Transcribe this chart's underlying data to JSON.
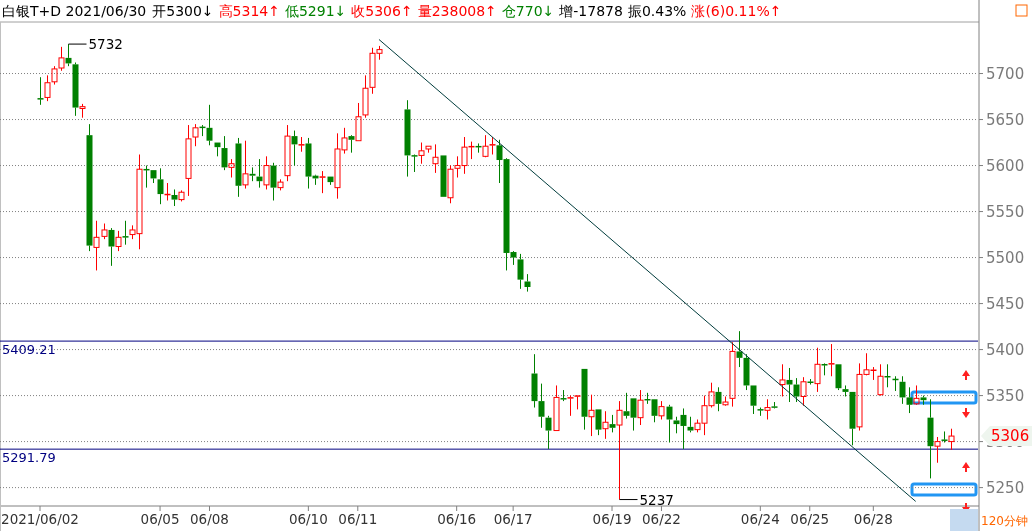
{
  "chart_data": {
    "type": "candlestick",
    "title": "白银T+D 2021/06/30",
    "xlabel": "120分钟",
    "annotations": [
      "开5300↓",
      "高5314↑",
      "低5291↓",
      "收5306↑",
      "量238008↑",
      "仓770↓",
      "增-17878",
      "振0.43%",
      "涨(6)0.11%↑",
      "5732",
      "5237",
      "5306"
    ],
    "categories": [
      "2021/06/02",
      null,
      null,
      null,
      null,
      null,
      null,
      null,
      null,
      null,
      null,
      null,
      null,
      null,
      null,
      null,
      null,
      "06/05",
      null,
      null,
      null,
      null,
      null,
      null,
      "06/08",
      null,
      null,
      null,
      null,
      null,
      null,
      null,
      null,
      null,
      null,
      null,
      null,
      null,
      "06/10",
      null,
      null,
      null,
      null,
      null,
      null,
      "06/11",
      null,
      null,
      null,
      null,
      null,
      null,
      null,
      null,
      null,
      null,
      null,
      null,
      null,
      "06/16",
      null,
      null,
      null,
      null,
      null,
      null,
      null,
      "06/17",
      null,
      null,
      null,
      null,
      null,
      null,
      null,
      null,
      null,
      null,
      null,
      null,
      null,
      "06/19",
      null,
      null,
      null,
      null,
      null,
      null,
      "06/22",
      null,
      null,
      null,
      null,
      null,
      null,
      null,
      null,
      null,
      null,
      null,
      null,
      null,
      "06/24",
      null,
      null,
      null,
      null,
      null,
      null,
      "06/25",
      null,
      null,
      null,
      null,
      null,
      null,
      null,
      null,
      "06/28",
      null,
      null,
      null,
      null,
      null,
      null,
      null,
      null,
      null,
      null,
      null
    ],
    "ohlc": [
      [
        5673,
        5696,
        5666,
        5672
      ],
      [
        5674,
        5698,
        5670,
        5690
      ],
      [
        5691,
        5708,
        5688,
        5705
      ],
      [
        5706,
        5729,
        5703,
        5717
      ],
      [
        5717,
        5732,
        5708,
        5711
      ],
      [
        5710,
        5712,
        5654,
        5663
      ],
      [
        5662,
        5667,
        5652,
        5664
      ],
      [
        5633,
        5645,
        5507,
        5513
      ],
      [
        5511,
        5540,
        5486,
        5522
      ],
      [
        5523,
        5537,
        5520,
        5530
      ],
      [
        5530,
        5532,
        5491,
        5512
      ],
      [
        5512,
        5529,
        5507,
        5522
      ],
      [
        5523,
        5540,
        5514,
        5522
      ],
      [
        5525,
        5535,
        5520,
        5530
      ],
      [
        5526,
        5612,
        5509,
        5596
      ],
      [
        5596,
        5600,
        5576,
        5595
      ],
      [
        5595,
        5595,
        5581,
        5586
      ],
      [
        5585,
        5597,
        5558,
        5569
      ],
      [
        5568,
        5581,
        5562,
        5569
      ],
      [
        5568,
        5574,
        5556,
        5563
      ],
      [
        5563,
        5573,
        5561,
        5571
      ],
      [
        5586,
        5644,
        5567,
        5629
      ],
      [
        5631,
        5645,
        5621,
        5641
      ],
      [
        5642,
        5644,
        5632,
        5641
      ],
      [
        5641,
        5666,
        5622,
        5627
      ],
      [
        5625,
        5625,
        5610,
        5620
      ],
      [
        5619,
        5632,
        5595,
        5598
      ],
      [
        5598,
        5607,
        5587,
        5602
      ],
      [
        5624,
        5630,
        5566,
        5578
      ],
      [
        5579,
        5627,
        5575,
        5591
      ],
      [
        5591,
        5598,
        5583,
        5589
      ],
      [
        5588,
        5607,
        5576,
        5583
      ],
      [
        5579,
        5610,
        5574,
        5600
      ],
      [
        5600,
        5603,
        5562,
        5576
      ],
      [
        5576,
        5585,
        5573,
        5582
      ],
      [
        5589,
        5644,
        5583,
        5632
      ],
      [
        5632,
        5638,
        5600,
        5623
      ],
      [
        5622,
        5631,
        5615,
        5623
      ],
      [
        5624,
        5630,
        5575,
        5588
      ],
      [
        5589,
        5590,
        5579,
        5586
      ],
      [
        5587,
        5594,
        5570,
        5588
      ],
      [
        5588,
        5588,
        5579,
        5582
      ],
      [
        5576,
        5635,
        5564,
        5618
      ],
      [
        5617,
        5641,
        5613,
        5630
      ],
      [
        5632,
        5633,
        5614,
        5628
      ],
      [
        5627,
        5668,
        5627,
        5653
      ],
      [
        5655,
        5698,
        5652,
        5684
      ],
      [
        5685,
        5728,
        5678,
        5722
      ],
      [
        5722,
        5730,
        5715,
        5726
      ],
      null,
      null,
      null,
      [
        5661,
        5671,
        5588,
        5611
      ],
      [
        5611,
        5612,
        5593,
        5610
      ],
      [
        5611,
        5625,
        5602,
        5616
      ],
      [
        5618,
        5621,
        5614,
        5621
      ],
      [
        5602,
        5623,
        5592,
        5609
      ],
      [
        5611,
        5611,
        5566,
        5566
      ],
      [
        5565,
        5600,
        5559,
        5596
      ],
      [
        5597,
        5610,
        5587,
        5600
      ],
      [
        5600,
        5631,
        5591,
        5620
      ],
      [
        5620,
        5626,
        5607,
        5621
      ],
      [
        5621,
        5624,
        5614,
        5620
      ],
      [
        5610,
        5633,
        5609,
        5621
      ],
      [
        5622,
        5631,
        5612,
        5623
      ],
      [
        5622,
        5628,
        5581,
        5606
      ],
      [
        5607,
        5608,
        5486,
        5505
      ],
      [
        5506,
        5507,
        5492,
        5500
      ],
      [
        5498,
        5504,
        5466,
        5476
      ],
      [
        5474,
        5482,
        5463,
        5468
      ],
      [
        5374,
        5395,
        5337,
        5344
      ],
      [
        5344,
        5363,
        5315,
        5327
      ],
      [
        5326,
        5328,
        5292,
        5312
      ],
      [
        5312,
        5361,
        5312,
        5348
      ],
      [
        5347,
        5356,
        5344,
        5346
      ],
      [
        5347,
        5350,
        5328,
        5348
      ],
      [
        5349,
        5350,
        5335,
        5350
      ],
      [
        5379,
        5379,
        5313,
        5327
      ],
      [
        5327,
        5351,
        5306,
        5334
      ],
      [
        5335,
        5335,
        5307,
        5313
      ],
      [
        5314,
        5333,
        5303,
        5321
      ],
      [
        5319,
        5329,
        5310,
        5315
      ],
      [
        5318,
        5344,
        5237,
        5334
      ],
      [
        5333,
        5353,
        5325,
        5328
      ],
      [
        5347,
        5347,
        5312,
        5326
      ],
      [
        5326,
        5356,
        5318,
        5345
      ],
      [
        5346,
        5353,
        5341,
        5345
      ],
      [
        5346,
        5346,
        5321,
        5328
      ],
      [
        5328,
        5344,
        5324,
        5338
      ],
      [
        5338,
        5340,
        5299,
        5324
      ],
      [
        5323,
        5327,
        5309,
        5319
      ],
      [
        5329,
        5336,
        5292,
        5317
      ],
      [
        5316,
        5327,
        5310,
        5312
      ],
      [
        5313,
        5324,
        5310,
        5320
      ],
      [
        5320,
        5350,
        5307,
        5339
      ],
      [
        5339,
        5364,
        5337,
        5354
      ],
      [
        5354,
        5359,
        5333,
        5341
      ],
      [
        5340,
        5349,
        5339,
        5343
      ],
      [
        5347,
        5408,
        5338,
        5398
      ],
      [
        5398,
        5420,
        5381,
        5391
      ],
      [
        5391,
        5395,
        5356,
        5361
      ],
      [
        5361,
        5361,
        5330,
        5339
      ],
      [
        5335,
        5337,
        5328,
        5334
      ],
      [
        5334,
        5346,
        5324,
        5337
      ],
      [
        5338,
        5343,
        5336,
        5337
      ],
      [
        5362,
        5384,
        5349,
        5367
      ],
      [
        5367,
        5380,
        5343,
        5362
      ],
      [
        5362,
        5369,
        5343,
        5349
      ],
      [
        5349,
        5370,
        5339,
        5365
      ],
      [
        5365,
        5368,
        5362,
        5364
      ],
      [
        5363,
        5402,
        5354,
        5384
      ],
      [
        5384,
        5385,
        5372,
        5383
      ],
      [
        5384,
        5406,
        5371,
        5385
      ],
      [
        5384,
        5384,
        5356,
        5358
      ],
      [
        5357,
        5361,
        5349,
        5354
      ],
      [
        5354,
        5354,
        5296,
        5314
      ],
      [
        5316,
        5385,
        5312,
        5373
      ],
      [
        5373,
        5396,
        5372,
        5378
      ],
      [
        5377,
        5381,
        5367,
        5378
      ],
      [
        5351,
        5384,
        5350,
        5371
      ],
      [
        5371,
        5384,
        5359,
        5370
      ],
      [
        5368,
        5371,
        5355,
        5367
      ],
      [
        5365,
        5371,
        5341,
        5348
      ],
      [
        5348,
        5359,
        5331,
        5340
      ],
      [
        5341,
        5361,
        5340,
        5347
      ],
      [
        5348,
        5350,
        5340,
        5345
      ],
      [
        5326,
        5346,
        5260,
        5295
      ],
      [
        5295,
        5305,
        5277,
        5300
      ],
      [
        5302,
        5311,
        5299,
        5301
      ],
      [
        5300,
        5314,
        5291,
        5306
      ]
    ],
    "series": [
      {
        "type": "line",
        "values": [
          null,
          null,
          null,
          null,
          null,
          null,
          null,
          null,
          null,
          null,
          null,
          null,
          null,
          null,
          null,
          null,
          null,
          null,
          null,
          null,
          null,
          null,
          null,
          null,
          null,
          null,
          null,
          null,
          null,
          null,
          null,
          null,
          null,
          null,
          null,
          null,
          null,
          null,
          null,
          null,
          null,
          null,
          null,
          null,
          null,
          null,
          null,
          null,
          5737,
          null,
          null,
          null,
          null,
          null,
          null,
          null,
          null,
          null,
          null,
          null,
          null,
          null,
          null,
          null,
          null,
          null,
          null,
          null,
          null,
          null,
          null,
          null,
          null,
          null,
          null,
          null,
          null,
          null,
          null,
          null,
          null,
          null,
          null,
          null,
          null,
          null,
          null,
          null,
          null,
          null,
          null,
          null,
          null,
          null,
          null,
          null,
          null,
          null,
          null,
          null,
          null,
          null,
          null,
          null,
          null,
          null,
          null,
          null,
          null,
          null,
          null,
          null,
          null,
          null,
          null,
          null,
          null,
          null,
          null,
          null,
          null,
          null,
          null,
          null,
          5235,
          null,
          null,
          null,
          null,
          null
        ],
        "color": "#003c3c"
      }
    ],
    "ref_lines": [
      {
        "axis": "y",
        "value": 5409.21,
        "label": "5409.21",
        "color": "#000080"
      },
      {
        "axis": "y",
        "value": 5291.79,
        "label": "5291.79",
        "color": "#000080"
      }
    ],
    "ylim": [
      5230,
      5756
    ],
    "yticks": [
      5250,
      5300,
      5350,
      5400,
      5450,
      5500,
      5550,
      5600,
      5650,
      5700
    ],
    "grid": "y"
  }
}
